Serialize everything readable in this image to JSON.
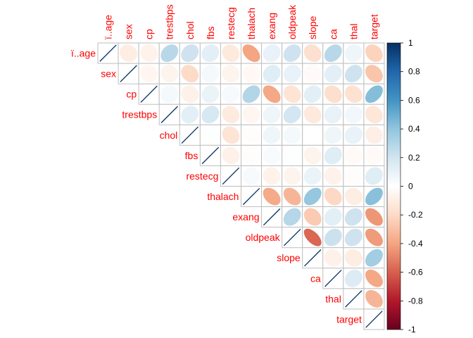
{
  "chart_data": {
    "type": "heatmap",
    "style": "upper-triangle correlation matrix drawn with ellipses",
    "variables": [
      "ï..age",
      "sex",
      "cp",
      "trestbps",
      "chol",
      "fbs",
      "restecg",
      "thalach",
      "exang",
      "oldpeak",
      "slope",
      "ca",
      "thal",
      "target"
    ],
    "matrix": [
      [
        1,
        -0.1,
        -0.07,
        0.28,
        0.21,
        0.12,
        -0.12,
        -0.4,
        0.1,
        0.21,
        -0.17,
        0.28,
        0.07,
        -0.23
      ],
      [
        -0.1,
        1,
        -0.05,
        -0.06,
        -0.2,
        0.05,
        -0.06,
        -0.04,
        0.14,
        0.1,
        -0.03,
        0.12,
        0.21,
        -0.28
      ],
      [
        -0.07,
        -0.05,
        1,
        0.05,
        -0.08,
        0.09,
        0.04,
        0.3,
        -0.39,
        -0.15,
        0.12,
        -0.18,
        -0.16,
        0.43
      ],
      [
        0.28,
        -0.06,
        0.05,
        1,
        0.12,
        0.18,
        -0.11,
        -0.05,
        0.07,
        0.19,
        -0.12,
        0.1,
        0.06,
        -0.14
      ],
      [
        0.21,
        -0.2,
        -0.08,
        0.12,
        1,
        0.01,
        -0.15,
        -0.01,
        0.07,
        0.05,
        -0.0,
        0.07,
        0.1,
        -0.09
      ],
      [
        0.12,
        0.05,
        0.09,
        0.18,
        0.01,
        1,
        -0.08,
        -0.01,
        0.03,
        0.01,
        -0.06,
        0.14,
        -0.03,
        -0.03
      ],
      [
        -0.12,
        -0.06,
        0.04,
        -0.11,
        -0.15,
        -0.08,
        1,
        0.04,
        -0.07,
        -0.06,
        0.09,
        -0.07,
        -0.01,
        0.14
      ],
      [
        -0.4,
        -0.04,
        0.3,
        -0.05,
        -0.01,
        -0.01,
        0.04,
        1,
        -0.38,
        -0.34,
        0.39,
        -0.21,
        -0.1,
        0.42
      ],
      [
        0.1,
        0.14,
        -0.39,
        0.07,
        0.07,
        0.03,
        -0.07,
        -0.38,
        1,
        0.29,
        -0.26,
        0.12,
        0.21,
        -0.44
      ],
      [
        0.21,
        0.1,
        -0.15,
        0.19,
        0.05,
        0.01,
        -0.06,
        -0.34,
        0.29,
        1,
        -0.58,
        0.22,
        0.21,
        -0.43
      ],
      [
        -0.17,
        -0.03,
        0.12,
        -0.12,
        -0.0,
        -0.06,
        0.09,
        0.39,
        -0.26,
        -0.58,
        1,
        -0.08,
        -0.1,
        0.35
      ],
      [
        0.28,
        0.12,
        -0.18,
        0.1,
        0.07,
        0.14,
        -0.07,
        -0.21,
        0.12,
        0.22,
        -0.08,
        1,
        0.15,
        -0.39
      ],
      [
        0.07,
        0.21,
        -0.16,
        0.06,
        0.1,
        -0.03,
        -0.01,
        -0.1,
        0.21,
        0.21,
        -0.1,
        0.15,
        1,
        -0.34
      ],
      [
        -0.23,
        -0.28,
        0.43,
        -0.14,
        -0.09,
        -0.03,
        0.14,
        0.42,
        -0.44,
        -0.43,
        0.35,
        -0.39,
        -0.34,
        1
      ]
    ],
    "colorbar": {
      "range": [
        -1,
        1
      ],
      "ticks": [
        "1",
        "0.8",
        "0.6",
        "0.4",
        "0.2",
        "0",
        "-0.2",
        "-0.4",
        "-0.6",
        "-0.8",
        "-1"
      ]
    },
    "colors": {
      "label": "#ff0000",
      "grid": "#bebebe",
      "negative_end": "#67001f",
      "positive_end": "#053061"
    }
  }
}
